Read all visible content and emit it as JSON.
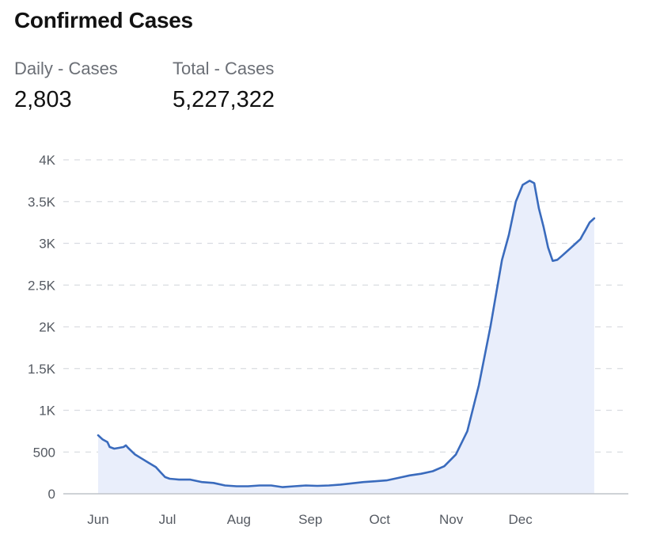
{
  "header": {
    "title": "Confirmed Cases"
  },
  "stats": {
    "daily_label": "Daily - Cases",
    "daily_value": "2,803",
    "total_label": "Total - Cases",
    "total_value": "5,227,322"
  },
  "colors": {
    "line": "#3a6bbd",
    "fill": "#e9eefb",
    "grid": "#d9dce1",
    "axis": "#bfc3c9"
  },
  "chart_data": {
    "type": "area",
    "title": "Confirmed Cases",
    "xlabel": "",
    "ylabel": "",
    "ylim": [
      0,
      4000
    ],
    "y_ticks": [
      0,
      500,
      1000,
      1500,
      2000,
      2500,
      3000,
      3500,
      4000
    ],
    "y_tick_labels": [
      "0",
      "500",
      "1K",
      "1.5K",
      "2K",
      "2.5K",
      "3K",
      "3.5K",
      "4K"
    ],
    "x_ticks": [
      0,
      30,
      61,
      92,
      122,
      153,
      183
    ],
    "x_tick_labels": [
      "Jun",
      "Jul",
      "Aug",
      "Sep",
      "Oct",
      "Nov",
      "Dec"
    ],
    "x_unit": "days since Jun 1",
    "grid": true,
    "series": [
      {
        "name": "Daily - Cases",
        "x": [
          0,
          2,
          4,
          5,
          7,
          9,
          11,
          12,
          13,
          16,
          19,
          22,
          25,
          27,
          29,
          31,
          33,
          35,
          40,
          45,
          50,
          55,
          60,
          65,
          70,
          75,
          80,
          85,
          90,
          95,
          100,
          105,
          110,
          115,
          120,
          125,
          130,
          135,
          140,
          145,
          150,
          155,
          160,
          165,
          170,
          175,
          178,
          181,
          184,
          187,
          189,
          191,
          193,
          195,
          197,
          199,
          201,
          203,
          205,
          207,
          209,
          210,
          211,
          212,
          213,
          215
        ],
        "values": [
          700,
          650,
          620,
          560,
          540,
          550,
          560,
          580,
          550,
          470,
          420,
          370,
          320,
          260,
          200,
          180,
          175,
          170,
          170,
          140,
          130,
          100,
          90,
          90,
          100,
          100,
          80,
          90,
          100,
          95,
          100,
          110,
          125,
          140,
          150,
          160,
          190,
          220,
          240,
          270,
          330,
          470,
          750,
          1300,
          2000,
          2800,
          3100,
          3500,
          3700,
          3750,
          3720,
          3420,
          3200,
          2950,
          2790,
          2803,
          2850,
          2900,
          2950,
          3000,
          3050,
          3100,
          3150,
          3200,
          3250,
          3300
        ]
      }
    ]
  }
}
